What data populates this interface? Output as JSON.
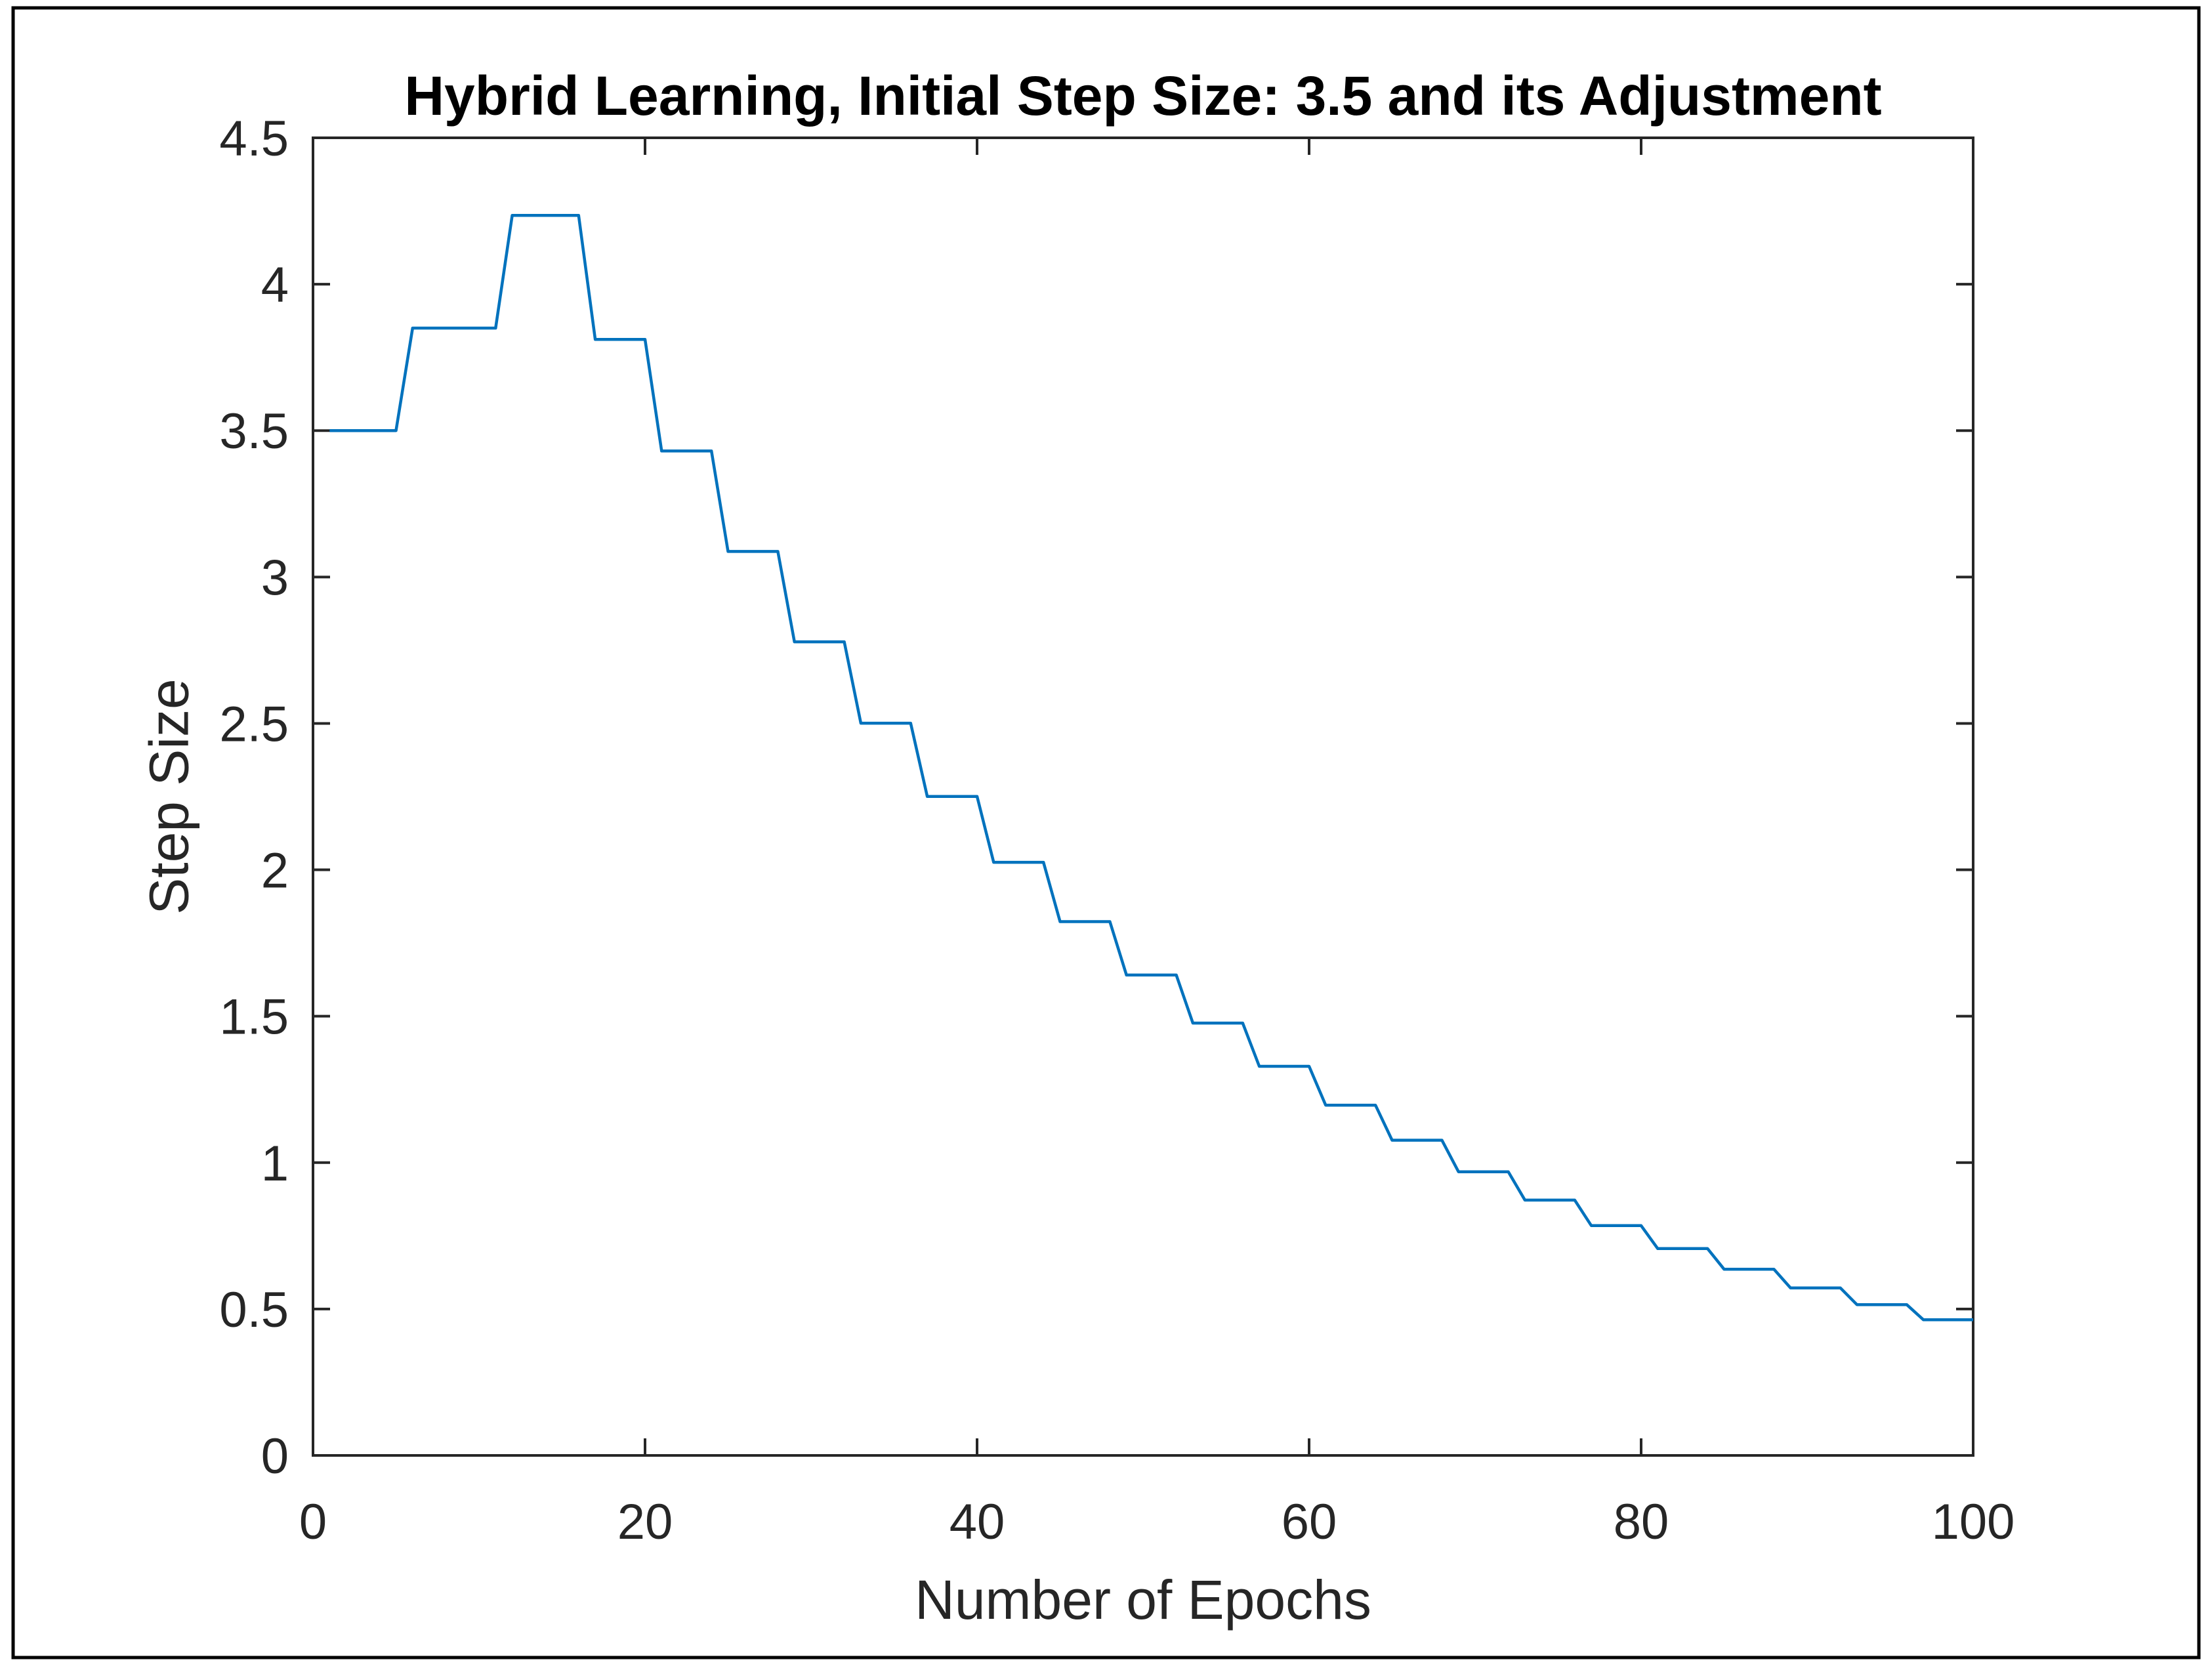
{
  "figure": {
    "title": "Hybrid Learning, Initial Step Size: 3.5 and its Adjustment",
    "xlabel": "Number of Epochs",
    "ylabel": "Step Size"
  },
  "chart_data": {
    "type": "line",
    "line_style": "step-like staircase, single series",
    "title": "Hybrid Learning, Initial Step Size: 3.5 and its Adjustment",
    "xlabel": "Number of Epochs",
    "ylabel": "Step Size",
    "xlim": [
      0,
      100
    ],
    "ylim": [
      0,
      4.5
    ],
    "xticks": [
      0,
      20,
      40,
      60,
      80,
      100
    ],
    "yticks": [
      0,
      0.5,
      1,
      1.5,
      2,
      2.5,
      3,
      3.5,
      4,
      4.5
    ],
    "grid": false,
    "legend": "none",
    "box": true,
    "line_color": "#0072BD",
    "axis_color": "#262626",
    "title_color": "#000000",
    "frame_color": "#000000",
    "background_color": "#ffffff",
    "series": [
      {
        "name": "Step Size",
        "x_start_epoch": 1,
        "x_end_epoch": 100,
        "values": [
          3.5,
          3.5,
          3.5,
          3.5,
          3.5,
          3.85,
          3.85,
          3.85,
          3.85,
          3.85,
          3.85,
          4.235,
          4.235,
          4.235,
          4.235,
          4.235,
          3.8115,
          3.8115,
          3.8115,
          3.8115,
          3.4304,
          3.4304,
          3.4304,
          3.4304,
          3.0873,
          3.0873,
          3.0873,
          3.0873,
          2.7786,
          2.7786,
          2.7786,
          2.7786,
          2.5007,
          2.5007,
          2.5007,
          2.5007,
          2.2507,
          2.2507,
          2.2507,
          2.2507,
          2.0256,
          2.0256,
          2.0256,
          2.0256,
          1.823,
          1.823,
          1.823,
          1.823,
          1.6407,
          1.6407,
          1.6407,
          1.6407,
          1.4767,
          1.4767,
          1.4767,
          1.4767,
          1.329,
          1.329,
          1.329,
          1.329,
          1.1961,
          1.1961,
          1.1961,
          1.1961,
          1.0765,
          1.0765,
          1.0765,
          1.0765,
          0.9688,
          0.9688,
          0.9688,
          0.9688,
          0.8719,
          0.8719,
          0.8719,
          0.8719,
          0.7848,
          0.7848,
          0.7848,
          0.7848,
          0.7063,
          0.7063,
          0.7063,
          0.7063,
          0.6357,
          0.6357,
          0.6357,
          0.6357,
          0.5721,
          0.5721,
          0.5721,
          0.5721,
          0.5149,
          0.5149,
          0.5149,
          0.5149,
          0.4634,
          0.4634,
          0.4634,
          0.4634
        ]
      }
    ],
    "steps_summary": [
      {
        "epochs": "1-5",
        "value": 3.5
      },
      {
        "epochs": "6-11",
        "value": 3.85
      },
      {
        "epochs": "12-16",
        "value": 4.235
      },
      {
        "epochs": "17-20",
        "value": 3.8115
      },
      {
        "epochs": "21-24",
        "value": 3.4304
      },
      {
        "epochs": "25-28",
        "value": 3.0873
      },
      {
        "epochs": "29-32",
        "value": 2.7786
      },
      {
        "epochs": "33-36",
        "value": 2.5007
      },
      {
        "epochs": "37-40",
        "value": 2.2507
      },
      {
        "epochs": "41-44",
        "value": 2.0256
      },
      {
        "epochs": "45-48",
        "value": 1.823
      },
      {
        "epochs": "49-52",
        "value": 1.6407
      },
      {
        "epochs": "53-56",
        "value": 1.4767
      },
      {
        "epochs": "57-60",
        "value": 1.329
      },
      {
        "epochs": "61-64",
        "value": 1.1961
      },
      {
        "epochs": "65-68",
        "value": 1.0765
      },
      {
        "epochs": "69-72",
        "value": 0.9688
      },
      {
        "epochs": "73-76",
        "value": 0.8719
      },
      {
        "epochs": "77-80",
        "value": 0.7848
      },
      {
        "epochs": "81-84",
        "value": 0.7063
      },
      {
        "epochs": "85-88",
        "value": 0.6357
      },
      {
        "epochs": "89-92",
        "value": 0.5721
      },
      {
        "epochs": "93-96",
        "value": 0.5149
      },
      {
        "epochs": "97-100",
        "value": 0.4634
      }
    ]
  }
}
